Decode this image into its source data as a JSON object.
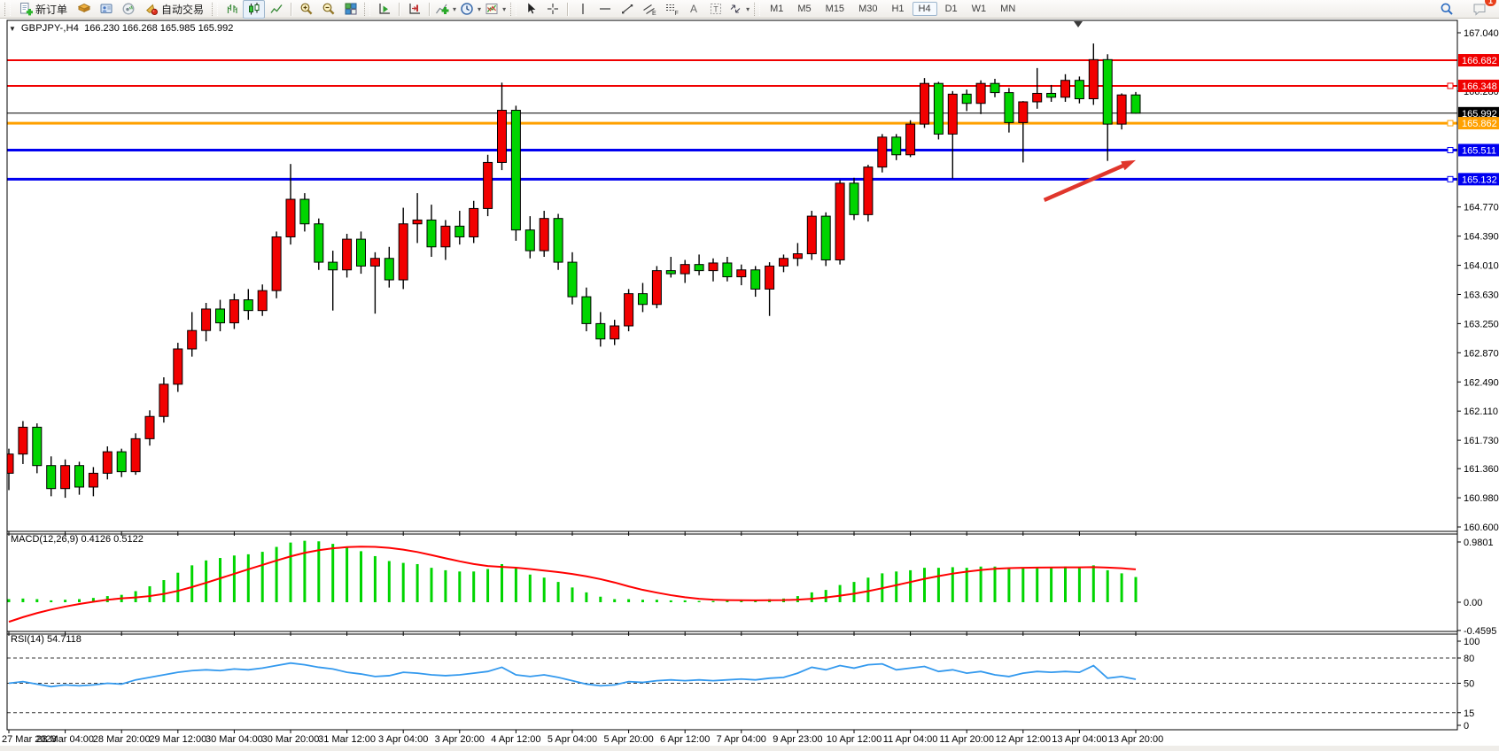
{
  "toolbar": {
    "new_order_label": "新订单",
    "auto_trading_label": "自动交易",
    "timeframes": [
      "M1",
      "M5",
      "M15",
      "M30",
      "H1",
      "H4",
      "D1",
      "W1",
      "MN"
    ],
    "active_timeframe": "H4",
    "notification_badge": "1",
    "icons": [
      "new-order-icon",
      "market-book-icon",
      "navigator-icon",
      "signals-icon",
      "auto-trading-icon",
      "bar-chart-icon",
      "candlestick-chart-icon",
      "line-chart-icon",
      "zoom-in-icon",
      "zoom-out-icon",
      "tile-windows-icon",
      "auto-scroll-icon",
      "chart-shift-icon",
      "indicators-icon",
      "periods-icon",
      "templates-icon",
      "cursor-icon",
      "crosshair-icon",
      "vertical-line-icon",
      "horizontal-line-icon",
      "trendline-icon",
      "equidistant-channel-icon",
      "fibonacci-icon",
      "text-icon",
      "text-label-icon",
      "arrows-icon",
      "search-icon",
      "chat-icon"
    ]
  },
  "chart": {
    "collapse_glyph": "▼",
    "title": "GBPJPY-,H4",
    "ohlc": "166.230 166.268 165.985 165.992"
  },
  "price_axis": {
    "ticks": [
      "167.040",
      "166.280",
      "164.770",
      "164.390",
      "164.010",
      "163.630",
      "163.250",
      "162.870",
      "162.490",
      "162.110",
      "161.730",
      "161.360",
      "160.980",
      "160.600"
    ]
  },
  "hlines": [
    {
      "label": "166.682",
      "color": "#f00000",
      "width": 2,
      "handle": false
    },
    {
      "label": "166.348",
      "color": "#f00000",
      "width": 2,
      "handle": true
    },
    {
      "label": "165.992",
      "color": "#000000",
      "width": 1,
      "handle": false
    },
    {
      "label": "165.862",
      "color": "#ffa000",
      "width": 3,
      "handle": true
    },
    {
      "label": "165.511",
      "color": "#0000f0",
      "width": 3,
      "handle": true
    },
    {
      "label": "165.132",
      "color": "#0000f0",
      "width": 3,
      "handle": true
    }
  ],
  "time_axis": {
    "labels": [
      "27 Mar 2023",
      "28 Mar 04:00",
      "28 Mar 20:00",
      "29 Mar 12:00",
      "30 Mar 04:00",
      "30 Mar 20:00",
      "31 Mar 12:00",
      "3 Apr 04:00",
      "3 Apr 20:00",
      "4 Apr 12:00",
      "5 Apr 04:00",
      "5 Apr 20:00",
      "6 Apr 12:00",
      "7 Apr 04:00",
      "9 Apr 23:00",
      "10 Apr 12:00",
      "11 Apr 04:00",
      "11 Apr 20:00",
      "12 Apr 12:00",
      "13 Apr 04:00",
      "13 Apr 20:00"
    ]
  },
  "chart_data": [
    {
      "type": "candlestick",
      "title": "GBPJPY-,H4",
      "symbol": "GBPJPY-",
      "timeframe": "H4",
      "bull_color": "#f20000",
      "bear_color": "#00d500",
      "ylim": [
        160.42,
        167.17
      ],
      "ohlc_last": {
        "open": 166.23,
        "high": 166.268,
        "low": 165.985,
        "close": 165.992
      },
      "candles": [
        [
          161.3,
          161.62,
          161.08,
          161.55
        ],
        [
          161.55,
          161.98,
          161.42,
          161.9
        ],
        [
          161.9,
          161.95,
          161.3,
          161.4
        ],
        [
          161.4,
          161.52,
          161.0,
          161.1
        ],
        [
          161.1,
          161.48,
          160.98,
          161.4
        ],
        [
          161.4,
          161.45,
          161.02,
          161.12
        ],
        [
          161.12,
          161.38,
          161.0,
          161.3
        ],
        [
          161.3,
          161.65,
          161.22,
          161.58
        ],
        [
          161.58,
          161.62,
          161.25,
          161.32
        ],
        [
          161.32,
          161.82,
          161.28,
          161.75
        ],
        [
          161.75,
          162.12,
          161.66,
          162.04
        ],
        [
          162.04,
          162.55,
          161.96,
          162.46
        ],
        [
          162.46,
          163.0,
          162.36,
          162.92
        ],
        [
          162.92,
          163.4,
          162.82,
          163.16
        ],
        [
          163.16,
          163.52,
          163.02,
          163.44
        ],
        [
          163.44,
          163.56,
          163.15,
          163.26
        ],
        [
          163.26,
          163.64,
          163.18,
          163.56
        ],
        [
          163.56,
          163.7,
          163.3,
          163.42
        ],
        [
          163.42,
          163.76,
          163.35,
          163.68
        ],
        [
          163.68,
          164.45,
          163.58,
          164.38
        ],
        [
          164.38,
          165.33,
          164.28,
          164.87
        ],
        [
          164.87,
          164.95,
          164.45,
          164.55
        ],
        [
          164.55,
          164.62,
          163.95,
          164.05
        ],
        [
          164.05,
          164.2,
          163.42,
          163.95
        ],
        [
          163.95,
          164.42,
          163.85,
          164.35
        ],
        [
          164.35,
          164.45,
          163.9,
          164.0
        ],
        [
          164.0,
          164.18,
          163.38,
          164.1
        ],
        [
          164.1,
          164.25,
          163.72,
          163.82
        ],
        [
          163.82,
          164.76,
          163.7,
          164.55
        ],
        [
          164.55,
          164.95,
          164.3,
          164.6
        ],
        [
          164.6,
          164.8,
          164.12,
          164.25
        ],
        [
          164.25,
          164.6,
          164.08,
          164.52
        ],
        [
          164.52,
          164.72,
          164.28,
          164.38
        ],
        [
          164.38,
          164.85,
          164.3,
          164.75
        ],
        [
          164.75,
          165.45,
          164.65,
          165.35
        ],
        [
          165.35,
          166.39,
          165.25,
          166.03
        ],
        [
          166.03,
          166.09,
          164.33,
          164.47
        ],
        [
          164.47,
          164.65,
          164.1,
          164.2
        ],
        [
          164.2,
          164.72,
          164.12,
          164.62
        ],
        [
          164.62,
          164.68,
          163.95,
          164.05
        ],
        [
          164.05,
          164.18,
          163.5,
          163.6
        ],
        [
          163.6,
          163.72,
          163.15,
          163.25
        ],
        [
          163.25,
          163.4,
          162.95,
          163.05
        ],
        [
          163.05,
          163.3,
          162.97,
          163.22
        ],
        [
          163.22,
          163.7,
          163.15,
          163.64
        ],
        [
          163.64,
          163.78,
          163.4,
          163.5
        ],
        [
          163.5,
          164.0,
          163.45,
          163.94
        ],
        [
          163.94,
          164.12,
          163.85,
          163.9
        ],
        [
          163.9,
          164.08,
          163.78,
          164.02
        ],
        [
          164.02,
          164.15,
          163.88,
          163.94
        ],
        [
          163.94,
          164.1,
          163.8,
          164.04
        ],
        [
          164.04,
          164.12,
          163.8,
          163.86
        ],
        [
          163.86,
          164.02,
          163.75,
          163.95
        ],
        [
          163.95,
          164.0,
          163.6,
          163.7
        ],
        [
          163.7,
          164.05,
          163.35,
          164.0
        ],
        [
          164.0,
          164.15,
          163.92,
          164.1
        ],
        [
          164.1,
          164.3,
          164.0,
          164.16
        ],
        [
          164.16,
          164.72,
          164.08,
          164.65
        ],
        [
          164.65,
          164.7,
          164.0,
          164.08
        ],
        [
          164.08,
          165.12,
          164.02,
          165.08
        ],
        [
          165.08,
          165.15,
          164.6,
          164.67
        ],
        [
          164.67,
          165.32,
          164.58,
          165.29
        ],
        [
          165.29,
          165.72,
          165.22,
          165.68
        ],
        [
          165.68,
          165.72,
          165.38,
          165.45
        ],
        [
          165.45,
          165.9,
          165.42,
          165.85
        ],
        [
          165.85,
          166.45,
          165.8,
          166.38
        ],
        [
          166.38,
          166.4,
          165.65,
          165.72
        ],
        [
          165.72,
          166.28,
          165.14,
          166.24
        ],
        [
          166.24,
          166.3,
          166.02,
          166.12
        ],
        [
          166.12,
          166.42,
          165.98,
          166.38
        ],
        [
          166.38,
          166.44,
          166.2,
          166.26
        ],
        [
          166.26,
          166.32,
          165.74,
          165.87
        ],
        [
          165.87,
          166.15,
          165.35,
          166.14
        ],
        [
          166.14,
          166.58,
          166.05,
          166.25
        ],
        [
          166.25,
          166.36,
          166.14,
          166.2
        ],
        [
          166.2,
          166.5,
          166.14,
          166.42
        ],
        [
          166.42,
          166.47,
          166.12,
          166.18
        ],
        [
          166.18,
          166.9,
          166.1,
          166.69
        ],
        [
          166.69,
          166.76,
          165.37,
          165.85
        ],
        [
          165.85,
          166.25,
          165.78,
          166.23
        ],
        [
          166.23,
          166.268,
          165.985,
          165.992
        ]
      ],
      "annotation_arrow": {
        "x1_bar": 73.5,
        "y1_price": 164.86,
        "x2_bar": 80,
        "y2_price": 165.38,
        "color": "#e0362c"
      }
    },
    {
      "type": "macd",
      "label": "MACD(12,26,9)",
      "macd_value": 0.4126,
      "signal_value": 0.5122,
      "yticks": [
        "0.9801",
        "0.00",
        "-0.4595"
      ],
      "histogram_color": "#00d500",
      "signal_color": "#ff0000",
      "histogram": [
        0.05,
        0.06,
        0.05,
        0.03,
        0.04,
        0.05,
        0.07,
        0.1,
        0.12,
        0.18,
        0.26,
        0.36,
        0.48,
        0.6,
        0.68,
        0.72,
        0.76,
        0.78,
        0.82,
        0.9,
        0.97,
        1.0,
        0.99,
        0.95,
        0.9,
        0.83,
        0.75,
        0.67,
        0.64,
        0.62,
        0.56,
        0.52,
        0.5,
        0.5,
        0.54,
        0.62,
        0.55,
        0.45,
        0.4,
        0.33,
        0.24,
        0.16,
        0.09,
        0.05,
        0.05,
        0.04,
        0.04,
        0.03,
        0.03,
        0.02,
        0.02,
        0.03,
        0.03,
        0.04,
        0.05,
        0.06,
        0.1,
        0.16,
        0.2,
        0.28,
        0.33,
        0.4,
        0.47,
        0.5,
        0.52,
        0.56,
        0.56,
        0.57,
        0.56,
        0.58,
        0.58,
        0.56,
        0.55,
        0.56,
        0.57,
        0.58,
        0.56,
        0.6,
        0.52,
        0.47,
        0.41
      ],
      "signal_seed": [
        -0.62,
        -0.55,
        -0.48,
        -0.4,
        -0.33,
        -0.26,
        -0.18,
        -0.1
      ]
    },
    {
      "type": "rsi",
      "label": "RSI(14)",
      "value": 54.7118,
      "levels": [
        80,
        50,
        15
      ],
      "yticks": [
        "100",
        "80",
        "50",
        "15",
        "0"
      ],
      "line_color": "#3399ee",
      "series": [
        50,
        52,
        49,
        46,
        48,
        47,
        48,
        50,
        49,
        54,
        57,
        60,
        63,
        65,
        66,
        65,
        67,
        66,
        68,
        71,
        74,
        72,
        69,
        67,
        63,
        61,
        58,
        59,
        63,
        62,
        60,
        59,
        60,
        62,
        64,
        69,
        60,
        58,
        60,
        57,
        53,
        49,
        47,
        48,
        52,
        51,
        53,
        54,
        53,
        54,
        53,
        54,
        55,
        54,
        56,
        57,
        62,
        69,
        66,
        71,
        68,
        72,
        73,
        66,
        68,
        70,
        64,
        66,
        62,
        64,
        60,
        58,
        62,
        64,
        63,
        64,
        63,
        71,
        56,
        58,
        54.7
      ]
    }
  ]
}
